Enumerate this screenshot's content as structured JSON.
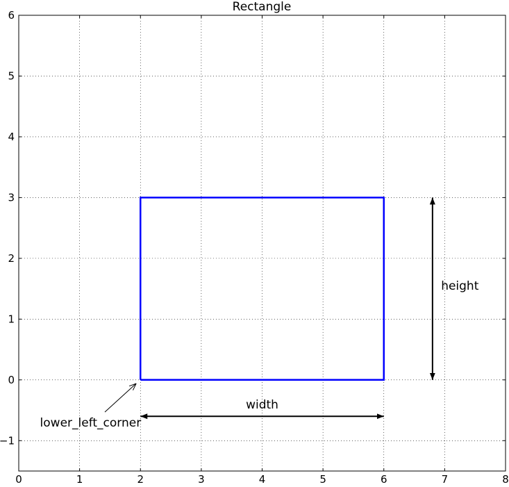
{
  "chart_data": {
    "type": "line",
    "title": "Rectangle",
    "xlabel": "",
    "ylabel": "",
    "xlim": [
      0,
      8
    ],
    "ylim": [
      -1.5,
      6
    ],
    "xticks": [
      0,
      1,
      2,
      3,
      4,
      5,
      6,
      7,
      8
    ],
    "yticks": [
      -1,
      0,
      1,
      2,
      3,
      4,
      5,
      6
    ],
    "xtick_labels": [
      "0",
      "1",
      "2",
      "3",
      "4",
      "5",
      "6",
      "7",
      "8"
    ],
    "ytick_labels": [
      "−1",
      "0",
      "1",
      "2",
      "3",
      "4",
      "5",
      "6"
    ],
    "grid": true,
    "rectangle": {
      "x": [
        2,
        6,
        6,
        2,
        2
      ],
      "y": [
        0,
        0,
        3,
        3,
        0
      ],
      "color": "#0000ff"
    },
    "annotations": [
      {
        "text": "width",
        "x": 4,
        "y": -0.4,
        "arrow": {
          "from": [
            6,
            -0.6
          ],
          "to": [
            2,
            -0.6
          ],
          "two_headed": true
        }
      },
      {
        "text": "height",
        "x": 7.25,
        "y": 1.55,
        "arrow": {
          "from": [
            6.8,
            0
          ],
          "to": [
            6.8,
            3
          ],
          "two_headed": true
        }
      },
      {
        "text": "lower_left_corner",
        "x": 1.18,
        "y": -0.7,
        "arrow": {
          "from": [
            1.415,
            -0.53
          ],
          "to": [
            1.93,
            -0.06
          ],
          "two_headed": false
        }
      }
    ]
  }
}
